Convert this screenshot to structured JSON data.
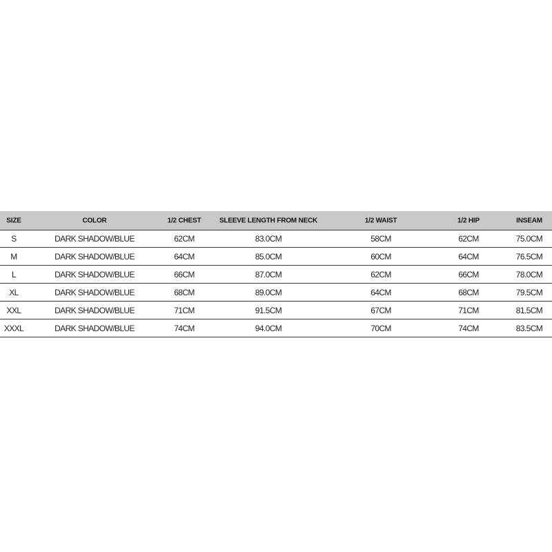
{
  "table": {
    "header": [
      "SIZE",
      "COLOR",
      "1/2 CHEST",
      "SLEEVE LENGTH FROM NECK",
      "1/2 WAIST",
      "1/2 HIP",
      "INSEAM"
    ],
    "rows": [
      [
        "S",
        "DARK SHADOW/BLUE",
        "62CM",
        "83.0CM",
        "58CM",
        "62CM",
        "75.0CM"
      ],
      [
        "M",
        "DARK SHADOW/BLUE",
        "64CM",
        "85.0CM",
        "60CM",
        "64CM",
        "76.5CM"
      ],
      [
        "L",
        "DARK SHADOW/BLUE",
        "66CM",
        "87.0CM",
        "62CM",
        "66CM",
        "78.0CM"
      ],
      [
        "XL",
        "DARK SHADOW/BLUE",
        "68CM",
        "89.0CM",
        "64CM",
        "68CM",
        "79.5CM"
      ],
      [
        "XXL",
        "DARK SHADOW/BLUE",
        "71CM",
        "91.5CM",
        "67CM",
        "71CM",
        "81.5CM"
      ],
      [
        "XXXL",
        "DARK SHADOW/BLUE",
        "74CM",
        "94.0CM",
        "70CM",
        "74CM",
        "83.5CM"
      ]
    ]
  }
}
